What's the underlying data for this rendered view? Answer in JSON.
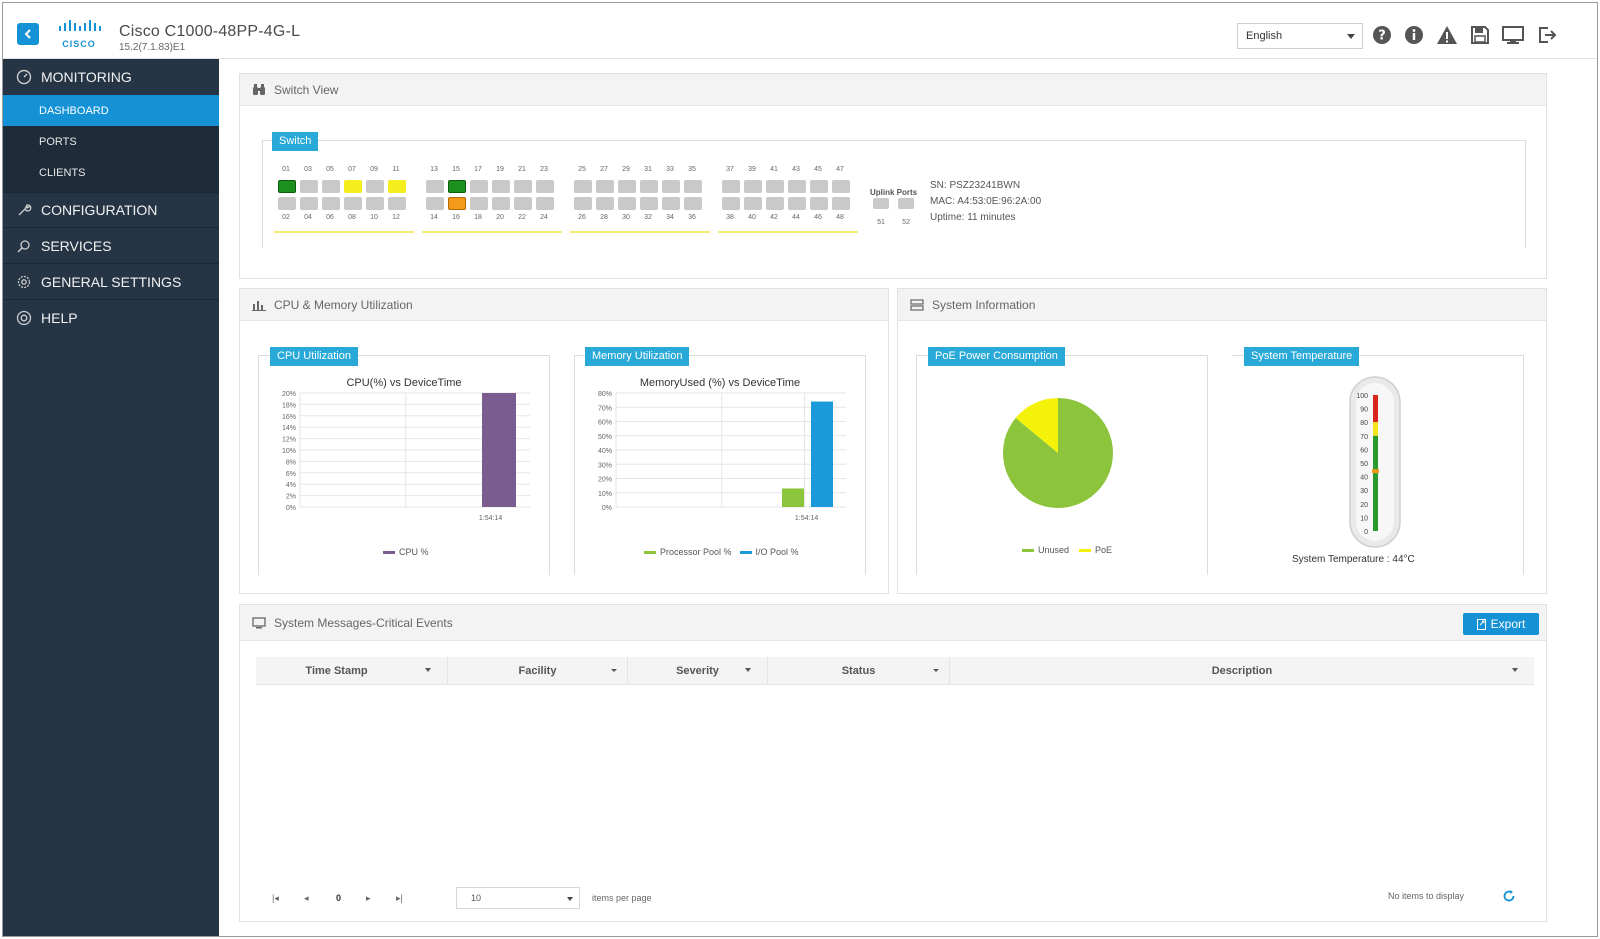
{
  "header": {
    "title": "Cisco C1000-48PP-4G-L",
    "subtitle": "15.2(7.1.83)E1",
    "logo_text": "CISCO",
    "language": "English",
    "icons": [
      "help-icon",
      "info-icon",
      "alert-icon",
      "save-icon",
      "monitor-icon",
      "logout-icon"
    ]
  },
  "sidebar": {
    "monitoring": "MONITORING",
    "sub_items": [
      "DASHBOARD",
      "PORTS",
      "CLIENTS"
    ],
    "configuration": "CONFIGURATION",
    "services": "SERVICES",
    "general_settings": "GENERAL SETTINGS",
    "help": "HELP"
  },
  "switch_view": {
    "title": "Switch View",
    "tag": "Switch",
    "groups": [
      {
        "top": [
          "01",
          "03",
          "05",
          "07",
          "09",
          "11"
        ],
        "bottom": [
          "02",
          "04",
          "06",
          "08",
          "10",
          "12"
        ],
        "top_states": [
          "green",
          "gray",
          "gray",
          "yellow",
          "gray",
          "yellow"
        ],
        "bottom_states": [
          "gray",
          "gray",
          "gray",
          "gray",
          "gray",
          "gray"
        ]
      },
      {
        "top": [
          "13",
          "15",
          "17",
          "19",
          "21",
          "23"
        ],
        "bottom": [
          "14",
          "16",
          "18",
          "20",
          "22",
          "24"
        ],
        "top_states": [
          "gray",
          "green",
          "gray",
          "gray",
          "gray",
          "gray"
        ],
        "bottom_states": [
          "gray",
          "orange",
          "gray",
          "gray",
          "gray",
          "gray"
        ]
      },
      {
        "top": [
          "25",
          "27",
          "29",
          "31",
          "33",
          "35"
        ],
        "bottom": [
          "26",
          "28",
          "30",
          "32",
          "34",
          "36"
        ],
        "top_states": [
          "gray",
          "gray",
          "gray",
          "gray",
          "gray",
          "gray"
        ],
        "bottom_states": [
          "gray",
          "gray",
          "gray",
          "gray",
          "gray",
          "gray"
        ]
      },
      {
        "top": [
          "37",
          "39",
          "41",
          "43",
          "45",
          "47"
        ],
        "bottom": [
          "38",
          "40",
          "42",
          "44",
          "46",
          "48"
        ],
        "top_states": [
          "gray",
          "gray",
          "gray",
          "gray",
          "gray",
          "gray"
        ],
        "bottom_states": [
          "gray",
          "gray",
          "gray",
          "gray",
          "gray",
          "gray"
        ]
      }
    ],
    "uplink_label": "Uplink Ports",
    "uplink_ports": [
      "51",
      "52"
    ],
    "sn": "SN: PSZ23241BWN",
    "mac": "MAC: A4:53:0E:96:2A:00",
    "uptime": "Uptime: 11 minutes"
  },
  "cpu_memory": {
    "title": "CPU & Memory Utilization",
    "cpu_tag": "CPU Utilization",
    "memory_tag": "Memory Utilization"
  },
  "system_info": {
    "title": "System Information",
    "poe_tag": "PoE Power Consumption",
    "temp_tag": "System Temperature",
    "temp_label": "System Temperature : 44°C",
    "temp_value": 44,
    "temp_ticks": [
      "100",
      "90",
      "80",
      "70",
      "60",
      "50",
      "40",
      "30",
      "20",
      "10",
      "0"
    ]
  },
  "chart_data": [
    {
      "type": "bar",
      "title": "CPU(%) vs DeviceTime",
      "categories": [
        "1:54:14"
      ],
      "series": [
        {
          "name": "CPU %",
          "values": [
            20
          ],
          "color": "#7a5c91"
        }
      ],
      "ylabels": [
        "20%",
        "18%",
        "16%",
        "14%",
        "12%",
        "10%",
        "8%",
        "6%",
        "4%",
        "2%",
        "0%"
      ],
      "ylim": [
        0,
        20
      ]
    },
    {
      "type": "bar",
      "title": "MemoryUsed (%) vs DeviceTime",
      "categories": [
        "1:54:14"
      ],
      "series": [
        {
          "name": "Processor Pool %",
          "values": [
            13
          ],
          "color": "#8cc43c"
        },
        {
          "name": "I/O Pool %",
          "values": [
            74
          ],
          "color": "#1b9ad9"
        }
      ],
      "ylabels": [
        "80%",
        "70%",
        "60%",
        "50%",
        "40%",
        "30%",
        "20%",
        "10%",
        "0%"
      ],
      "ylim": [
        0,
        80
      ]
    },
    {
      "type": "pie",
      "title": "",
      "categories": [
        "Unused",
        "PoE"
      ],
      "values": [
        86,
        14
      ],
      "colors": [
        "#8cc43c",
        "#f5f20a"
      ]
    }
  ],
  "messages": {
    "title": "System Messages-Critical Events",
    "export_label": "Export",
    "columns": [
      "Time Stamp",
      "Facility",
      "Severity",
      "Status",
      "Description"
    ],
    "page_number": "0",
    "page_size": "10",
    "items_per_page": "items per page",
    "empty": "No items to display"
  }
}
